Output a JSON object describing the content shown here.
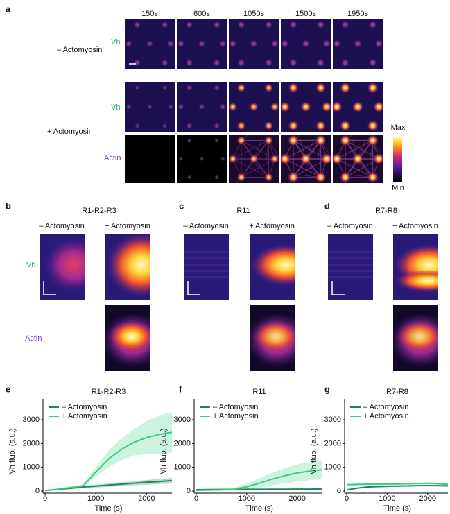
{
  "panel_a": {
    "label": "a",
    "times": [
      "150s",
      "600s",
      "1050s",
      "1500s",
      "1950s"
    ],
    "rows": [
      "– Actomyosin",
      "+ Actomyosin"
    ],
    "channels": [
      "Vh",
      "Vh",
      "Actin"
    ],
    "colorbar": {
      "max": "Max",
      "min": "Min"
    }
  },
  "panels_bcd": [
    {
      "label": "b",
      "title": "R1-R2-R3",
      "conditions": [
        "– Actomyosin",
        "+ Actomyosin"
      ],
      "channels": [
        "Vh",
        "Actin"
      ]
    },
    {
      "label": "c",
      "title": "R11",
      "conditions": [
        "– Actomyosin",
        "+ Actomyosin"
      ]
    },
    {
      "label": "d",
      "title": "R7-R8",
      "conditions": [
        "– Actomyosin",
        "+ Actomyosin"
      ]
    }
  ],
  "chart_data": [
    {
      "type": "line",
      "label": "e",
      "title": "R1-R2-R3",
      "xlabel": "Time (s)",
      "ylabel": "Vh fluo. (a.u.)",
      "x": [
        0,
        250,
        500,
        750,
        1000,
        1250,
        1500,
        1750,
        2000,
        2250,
        2500
      ],
      "series": [
        {
          "name": "– Actomyosin",
          "color": "#1b8a55",
          "values": [
            20,
            70,
            120,
            170,
            210,
            250,
            290,
            330,
            370,
            400,
            440
          ],
          "error": [
            20,
            30,
            40,
            50,
            60,
            70,
            80,
            90,
            100,
            110,
            120
          ]
        },
        {
          "name": "+ Actomyosin",
          "color": "#35d080",
          "values": [
            20,
            80,
            150,
            220,
            800,
            1350,
            1750,
            2050,
            2250,
            2380,
            2470
          ],
          "error": [
            20,
            30,
            40,
            60,
            200,
            350,
            450,
            550,
            700,
            800,
            850
          ]
        }
      ],
      "xlim": [
        0,
        2500
      ],
      "xticks": [
        0,
        1000,
        2000
      ],
      "ylim": [
        0,
        3700
      ],
      "yticks": [
        0,
        1000,
        2000,
        3000
      ]
    },
    {
      "type": "line",
      "label": "f",
      "title": "R11",
      "xlabel": "Time (s)",
      "ylabel": "Vh fluo. (a.u.)",
      "x": [
        0,
        250,
        500,
        750,
        1000,
        1250,
        1500,
        1750,
        2000,
        2250,
        2500
      ],
      "series": [
        {
          "name": "– Actomyosin",
          "color": "#1b8a55",
          "values": [
            60,
            65,
            70,
            70,
            75,
            75,
            80,
            80,
            85,
            85,
            90
          ],
          "error": [
            20,
            20,
            20,
            20,
            20,
            20,
            20,
            20,
            20,
            20,
            20
          ]
        },
        {
          "name": "+ Actomyosin",
          "color": "#35d080",
          "values": [
            30,
            40,
            50,
            80,
            180,
            330,
            500,
            640,
            760,
            840,
            900
          ],
          "error": [
            20,
            30,
            40,
            60,
            120,
            200,
            260,
            320,
            360,
            380,
            400
          ]
        }
      ],
      "xlim": [
        0,
        2500
      ],
      "xticks": [
        0,
        1000,
        2000
      ],
      "ylim": [
        0,
        3700
      ],
      "yticks": [
        0,
        1000,
        2000,
        3000
      ]
    },
    {
      "type": "line",
      "label": "g",
      "title": "R7-R8",
      "xlabel": "Time (s)",
      "ylabel": "Vh fluo. (a.u.)",
      "x": [
        0,
        250,
        500,
        750,
        1000,
        1250,
        1500,
        1750,
        2000,
        2250,
        2500
      ],
      "series": [
        {
          "name": "– Actomyosin",
          "color": "#1b8a55",
          "values": [
            50,
            120,
            170,
            190,
            200,
            210,
            220,
            230,
            230,
            230,
            220
          ],
          "error": [
            20,
            25,
            30,
            30,
            30,
            30,
            30,
            30,
            30,
            30,
            30
          ]
        },
        {
          "name": "+ Actomyosin",
          "color": "#35d080",
          "values": [
            270,
            280,
            290,
            290,
            290,
            300,
            310,
            320,
            330,
            310,
            280
          ],
          "error": [
            40,
            40,
            40,
            40,
            40,
            40,
            40,
            40,
            40,
            40,
            40
          ]
        }
      ],
      "xlim": [
        0,
        2500
      ],
      "xticks": [
        0,
        1000,
        2000
      ],
      "ylim": [
        0,
        3700
      ],
      "yticks": [
        0,
        1000,
        2000,
        3000
      ]
    }
  ]
}
